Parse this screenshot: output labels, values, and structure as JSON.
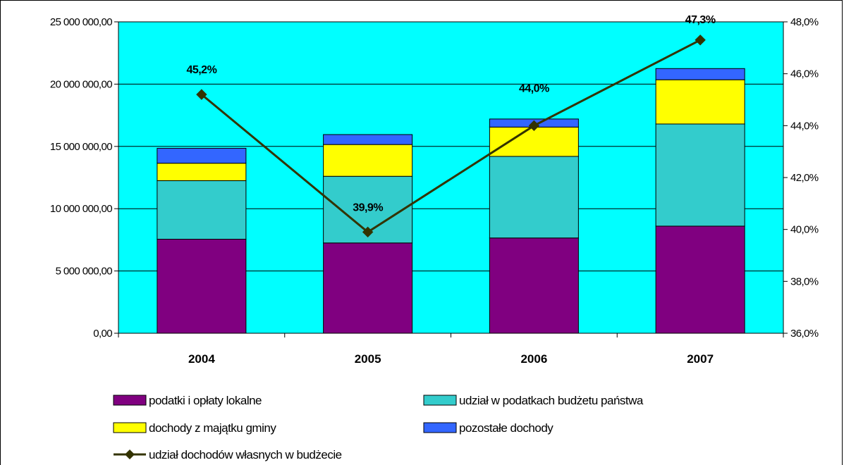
{
  "chart_data": {
    "type": "bar",
    "stacked": true,
    "categories": [
      "2004",
      "2005",
      "2006",
      "2007"
    ],
    "series": [
      {
        "name": "podatki i opłaty lokalne",
        "color": "#800080",
        "values": [
          7550000,
          7250000,
          7650000,
          8600000
        ]
      },
      {
        "name": "udział w podatkach budżetu państwa",
        "color": "#33CCCC",
        "values": [
          4700000,
          5350000,
          6550000,
          8200000
        ]
      },
      {
        "name": "dochody z majątku gminy",
        "color": "#FFFF00",
        "values": [
          1400000,
          2550000,
          2350000,
          3550000
        ]
      },
      {
        "name": "pozostałe dochody",
        "color": "#3366FF",
        "values": [
          1200000,
          800000,
          650000,
          900000
        ]
      }
    ],
    "line_series": {
      "name": "udział dochodów własnych w budżecie",
      "color": "#333300",
      "axis": "right",
      "values": [
        45.2,
        39.9,
        44.0,
        47.3
      ],
      "labels": [
        "45,2%",
        "39,9%",
        "44,0%",
        "47,3%"
      ]
    },
    "y_left": {
      "min": 0,
      "max": 25000000,
      "step": 5000000,
      "ticks": [
        "0,00",
        "5 000 000,00",
        "10 000 000,00",
        "15 000 000,00",
        "20 000 000,00",
        "25 000 000,00"
      ]
    },
    "y_right": {
      "min": 36,
      "max": 48,
      "step": 2,
      "ticks": [
        "36,0%",
        "38,0%",
        "40,0%",
        "42,0%",
        "44,0%",
        "46,0%",
        "48,0%"
      ]
    },
    "plot_background": "#00FFFF",
    "grid": true,
    "legend_position": "bottom"
  }
}
